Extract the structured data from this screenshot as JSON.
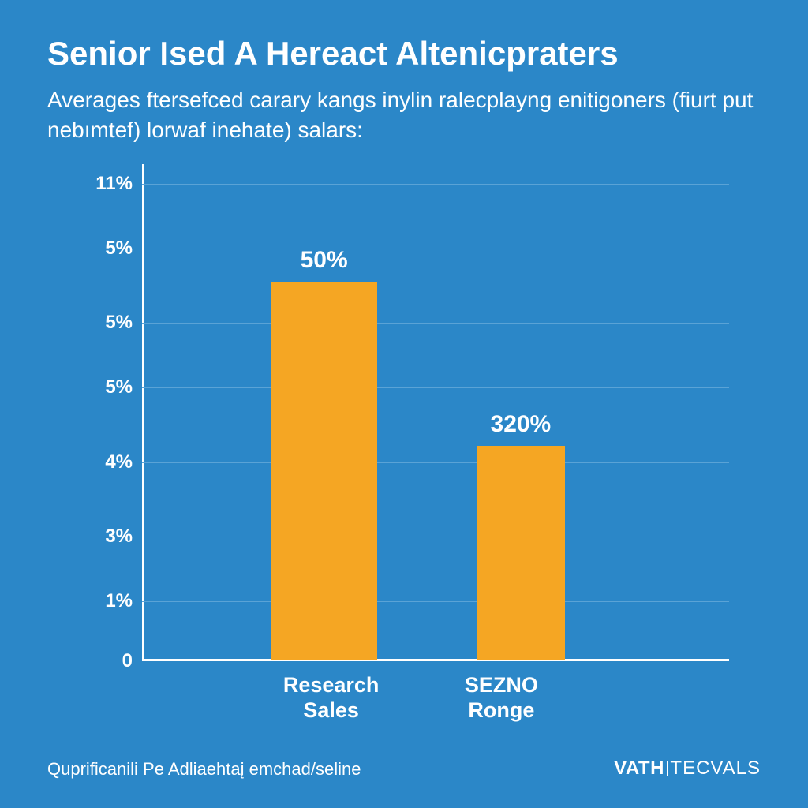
{
  "background_color": "#2b87c8",
  "title": {
    "text": "Senior Ised A Hereact Altenicpraters",
    "fontsize": 42,
    "color": "#ffffff",
    "weight": 700
  },
  "subtitle": {
    "text": "Averages ftersefced carary kangs inylin ralecplayng enitigoners (fiurt put nebımtef) lorwaf inehate) salars:",
    "fontsize": 28,
    "color": "#ffffff",
    "weight": 400
  },
  "chart": {
    "type": "bar",
    "background_color": "#2b87c8",
    "grid_color": "#5aa3d6",
    "axis_color": "#ffffff",
    "y_ticks": [
      {
        "label": "11%",
        "pos_pct": 4
      },
      {
        "label": "5%",
        "pos_pct": 17
      },
      {
        "label": "5%",
        "pos_pct": 32
      },
      {
        "label": "5%",
        "pos_pct": 45
      },
      {
        "label": "4%",
        "pos_pct": 60
      },
      {
        "label": "3%",
        "pos_pct": 75
      },
      {
        "label": "1%",
        "pos_pct": 88
      },
      {
        "label": "0",
        "pos_pct": 100
      }
    ],
    "gridline_positions_pct": [
      4,
      17,
      32,
      45,
      60,
      75,
      88
    ],
    "tick_fontsize": 24,
    "bars": [
      {
        "category": "Research\nSales",
        "value_label": "50%",
        "height_pct": 76,
        "left_pct": 22,
        "width_pct": 18,
        "color": "#f5a623"
      },
      {
        "category": "SEZNO\nRonge",
        "value_label": "320%",
        "height_pct": 43,
        "left_pct": 57,
        "width_pct": 15,
        "color": "#f5a623"
      }
    ],
    "value_label_fontsize": 30,
    "x_label_fontsize": 27
  },
  "footnote": {
    "text": "Quprificanili Pe Adliaehtaį emchad/seline",
    "fontsize": 22,
    "color": "#ffffff"
  },
  "brand": {
    "first": "VATH",
    "second": "TECVALS",
    "fontsize": 24,
    "color": "#ffffff"
  }
}
